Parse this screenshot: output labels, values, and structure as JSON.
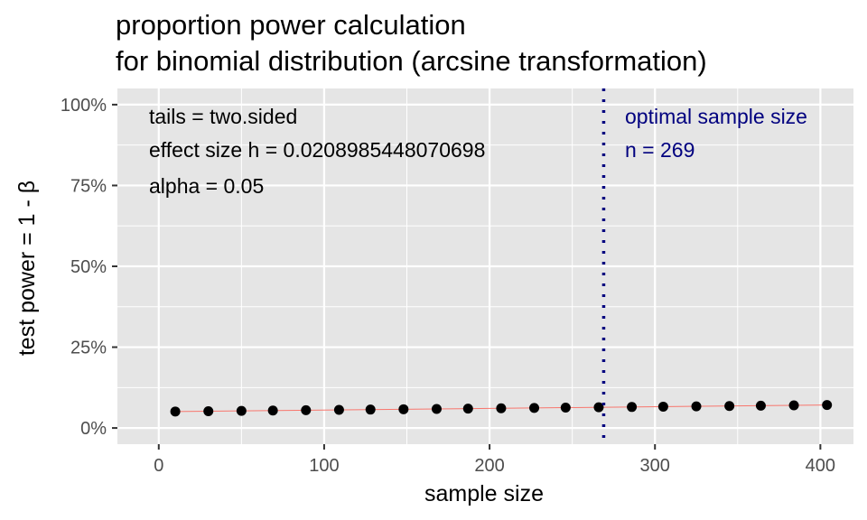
{
  "chart_data": {
    "type": "scatter",
    "title": [
      "proportion power calculation",
      "for binomial distribution (arcsine transformation)"
    ],
    "xlabel": "sample size",
    "ylabel": "test power = 1 - β",
    "xlim": [
      -25,
      420
    ],
    "ylim": [
      -0.05,
      1.05
    ],
    "x_ticks": [
      0,
      100,
      200,
      300,
      400
    ],
    "x_tick_labels": [
      "0",
      "100",
      "200",
      "300",
      "400"
    ],
    "y_ticks": [
      0,
      0.25,
      0.5,
      0.75,
      1
    ],
    "y_tick_labels": [
      "0%",
      "25%",
      "50%",
      "75%",
      "100%"
    ],
    "grid": true,
    "series": [
      {
        "x": [
          10,
          30,
          50,
          69,
          89,
          109,
          128,
          148,
          168,
          187,
          207,
          227,
          246,
          266,
          286,
          305,
          325,
          345,
          364,
          384,
          404
        ],
        "y": [
          0.051,
          0.052,
          0.053,
          0.054,
          0.055,
          0.056,
          0.057,
          0.058,
          0.059,
          0.06,
          0.061,
          0.062,
          0.063,
          0.064,
          0.065,
          0.066,
          0.067,
          0.068,
          0.069,
          0.07,
          0.071
        ],
        "point_color": "#000000",
        "line_color": "#f8766d"
      }
    ],
    "vline": {
      "x": 269,
      "color": "#00007f",
      "style": "dotted"
    },
    "annotations": {
      "params": [
        "tails = two.sided",
        "effect size h = 0.0208985448070698",
        "alpha = 0.05"
      ],
      "optimal": [
        "optimal sample size",
        "n = 269"
      ],
      "params_color": "#000000",
      "optimal_color": "#00007f"
    },
    "colors": {
      "panel": "#e5e5e5",
      "grid": "#ffffff"
    }
  }
}
